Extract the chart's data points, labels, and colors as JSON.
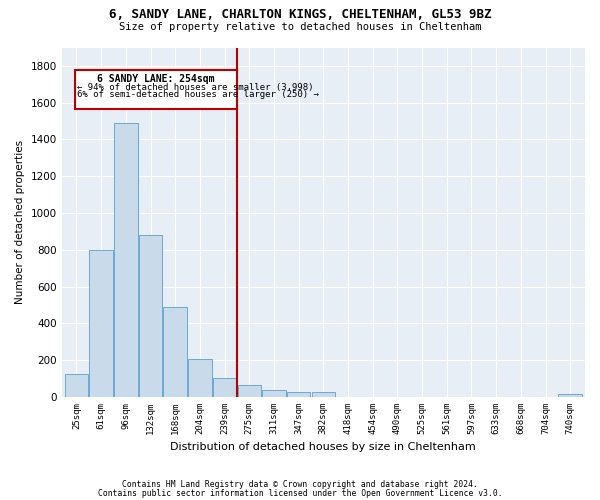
{
  "title1": "6, SANDY LANE, CHARLTON KINGS, CHELTENHAM, GL53 9BZ",
  "title2": "Size of property relative to detached houses in Cheltenham",
  "xlabel": "Distribution of detached houses by size in Cheltenham",
  "ylabel": "Number of detached properties",
  "bar_labels": [
    "25sqm",
    "61sqm",
    "96sqm",
    "132sqm",
    "168sqm",
    "204sqm",
    "239sqm",
    "275sqm",
    "311sqm",
    "347sqm",
    "382sqm",
    "418sqm",
    "454sqm",
    "490sqm",
    "525sqm",
    "561sqm",
    "597sqm",
    "633sqm",
    "668sqm",
    "704sqm",
    "740sqm"
  ],
  "bar_values": [
    125,
    800,
    1490,
    880,
    490,
    205,
    105,
    65,
    40,
    30,
    25,
    0,
    0,
    0,
    0,
    0,
    0,
    0,
    0,
    0,
    15
  ],
  "bar_color": "#c9daea",
  "bar_edgecolor": "#6aaad4",
  "ylim": [
    0,
    1900
  ],
  "yticks": [
    0,
    200,
    400,
    600,
    800,
    1000,
    1200,
    1400,
    1600,
    1800
  ],
  "vline_index": 6.5,
  "vline_color": "#bb0000",
  "annotation_line1": "6 SANDY LANE: 254sqm",
  "annotation_line2": "← 94% of detached houses are smaller (3,998)",
  "annotation_line3": "6% of semi-detached houses are larger (250) →",
  "annotation_box_color": "#bb0000",
  "footer1": "Contains HM Land Registry data © Crown copyright and database right 2024.",
  "footer2": "Contains public sector information licensed under the Open Government Licence v3.0.",
  "background_color": "#ffffff",
  "plot_bg_color": "#e8eef5"
}
